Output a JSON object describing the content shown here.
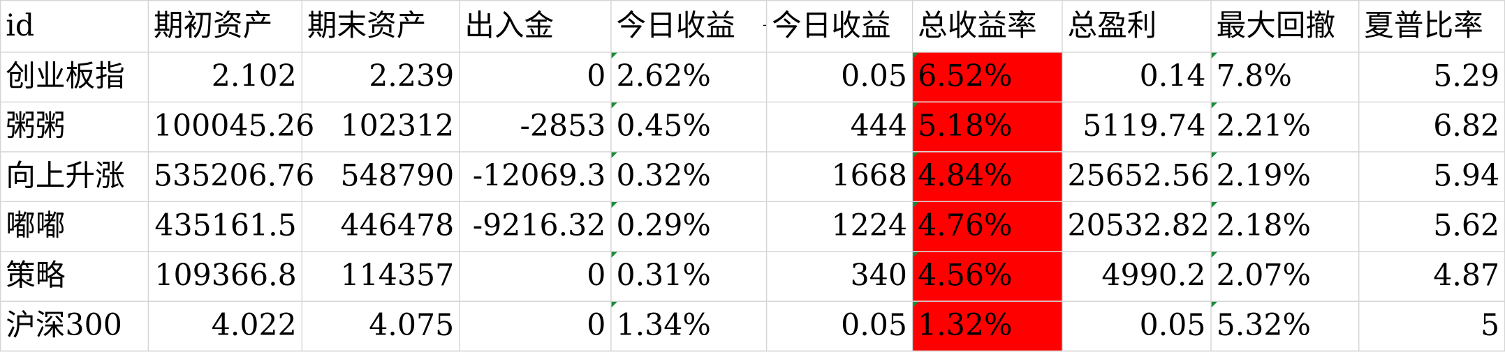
{
  "headers": [
    "id",
    "期初资产",
    "期末资产",
    "出入金",
    "今日收益",
    "今日收益",
    "总收益率",
    "总盈利",
    "最大回撤",
    "夏普比率"
  ],
  "rows": [
    [
      "创业板指",
      "2.102",
      "2.239",
      "0",
      "2.62%",
      "0.05",
      "6.52%",
      "0.14",
      "7.8%",
      "5.29"
    ],
    [
      "粥粥",
      "100045.26",
      "102312",
      "-2853",
      "0.45%",
      "444",
      "5.18%",
      "5119.74",
      "2.21%",
      "6.82"
    ],
    [
      "向上升涨",
      "535206.76",
      "548790",
      "-12069.3",
      "0.32%",
      "1668",
      "4.84%",
      "25652.56",
      "2.19%",
      "5.94"
    ],
    [
      "嘟嘟",
      "435161.5",
      "446478",
      "-9216.32",
      "0.29%",
      "1224",
      "4.76%",
      "20532.82",
      "2.18%",
      "5.62"
    ],
    [
      "策略",
      "109366.8",
      "114357",
      "0",
      "0.31%",
      "340",
      "4.56%",
      "4990.2",
      "2.07%",
      "4.87"
    ],
    [
      "沪深300",
      "4.022",
      "4.075",
      "0",
      "1.34%",
      "0.05",
      "1.32%",
      "0.05",
      "5.32%",
      "5"
    ]
  ],
  "colors": {
    "highlight": "#ff0000",
    "grid": "#d4d4d4",
    "marker": "#1a8a3a"
  }
}
